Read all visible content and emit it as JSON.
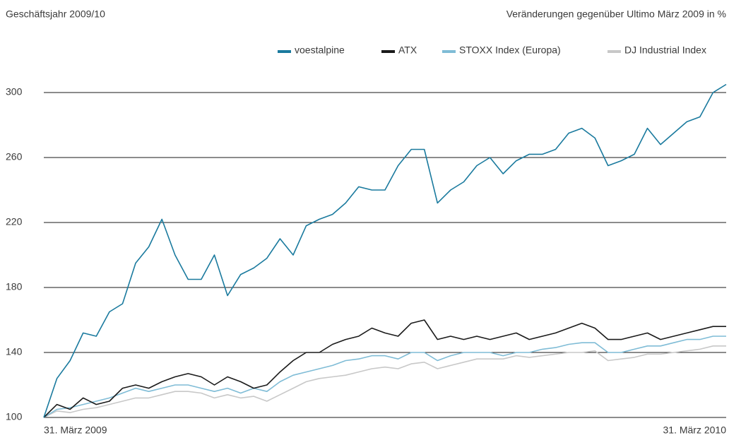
{
  "chart_data": {
    "type": "line",
    "title": "Geschäftsjahr 2009/10",
    "subtitle": "Veränderungen gegenüber Ultimo März 2009 in %",
    "categories": [
      "31. März 2009",
      null,
      null,
      null,
      null,
      null,
      null,
      null,
      null,
      null,
      null,
      null,
      null,
      null,
      null,
      null,
      null,
      null,
      null,
      null,
      null,
      null,
      null,
      null,
      null,
      null,
      null,
      null,
      null,
      null,
      null,
      null,
      null,
      null,
      null,
      null,
      null,
      null,
      null,
      null,
      null,
      null,
      null,
      null,
      null,
      null,
      null,
      null,
      null,
      null,
      null,
      null,
      "31. März 2010"
    ],
    "series": [
      {
        "name": "voestalpine",
        "color": "#1a7a9e",
        "values": [
          100,
          124,
          135,
          152,
          150,
          165,
          170,
          195,
          205,
          222,
          200,
          185,
          185,
          200,
          175,
          188,
          192,
          198,
          210,
          200,
          218,
          222,
          225,
          232,
          242,
          240,
          240,
          255,
          265,
          265,
          232,
          240,
          245,
          255,
          260,
          250,
          258,
          262,
          262,
          265,
          275,
          278,
          272,
          255,
          258,
          262,
          278,
          268,
          275,
          282,
          285,
          300,
          305
        ]
      },
      {
        "name": "ATX",
        "color": "#1a1a1a",
        "values": [
          100,
          108,
          105,
          112,
          108,
          110,
          118,
          120,
          118,
          122,
          125,
          127,
          125,
          120,
          125,
          122,
          118,
          120,
          128,
          135,
          140,
          140,
          145,
          148,
          150,
          155,
          152,
          150,
          158,
          160,
          148,
          150,
          148,
          150,
          148,
          150,
          152,
          148,
          150,
          152,
          155,
          158,
          155,
          148,
          148,
          150,
          152,
          148,
          150,
          152,
          154,
          156,
          156
        ]
      },
      {
        "name": "STOXX Index (Europa)",
        "color": "#7fbcd6",
        "values": [
          100,
          105,
          106,
          108,
          110,
          112,
          115,
          118,
          116,
          118,
          120,
          120,
          118,
          116,
          118,
          115,
          118,
          116,
          122,
          126,
          128,
          130,
          132,
          135,
          136,
          138,
          138,
          136,
          140,
          140,
          135,
          138,
          140,
          140,
          140,
          138,
          140,
          140,
          142,
          143,
          145,
          146,
          146,
          140,
          140,
          142,
          144,
          144,
          146,
          148,
          148,
          150,
          150
        ]
      },
      {
        "name": "DJ Industrial Index",
        "color": "#c8c8c8",
        "values": [
          100,
          104,
          103,
          105,
          106,
          108,
          110,
          112,
          112,
          114,
          116,
          116,
          115,
          112,
          114,
          112,
          113,
          110,
          114,
          118,
          122,
          124,
          125,
          126,
          128,
          130,
          131,
          130,
          133,
          134,
          130,
          132,
          134,
          136,
          136,
          136,
          138,
          137,
          138,
          139,
          140,
          140,
          141,
          135,
          136,
          137,
          139,
          139,
          140,
          141,
          142,
          144,
          144
        ]
      }
    ],
    "ylim": [
      100,
      300
    ],
    "yticks": [
      100,
      140,
      180,
      220,
      260,
      300
    ],
    "grid": true,
    "legend": "top-right"
  }
}
